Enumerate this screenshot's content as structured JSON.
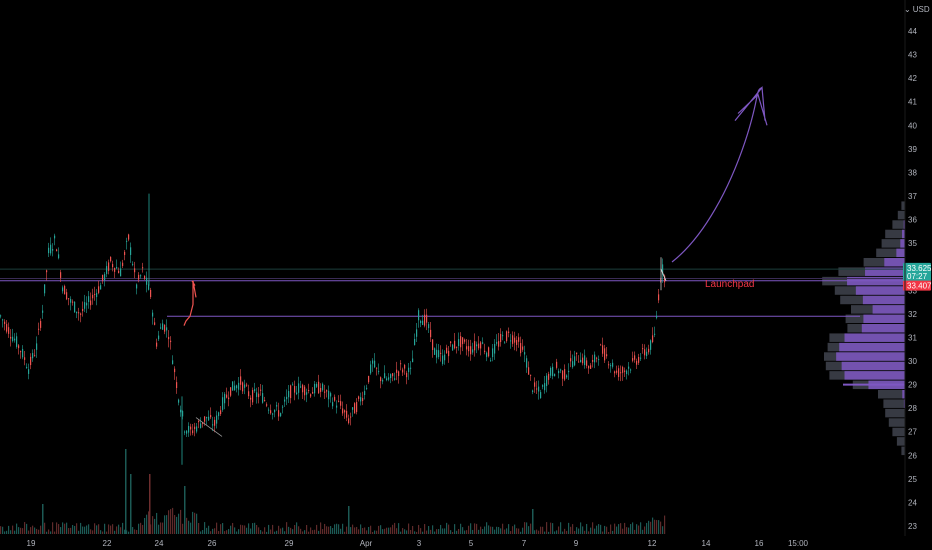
{
  "currency": {
    "label": "USD",
    "icon": "chevron-down-icon"
  },
  "y_axis": {
    "labels": [
      "44",
      "43",
      "42",
      "41",
      "40",
      "39",
      "38",
      "37",
      "36",
      "35",
      "34",
      "33",
      "32",
      "31",
      "30",
      "29",
      "28",
      "27",
      "26",
      "25",
      "24",
      "23"
    ]
  },
  "x_axis": {
    "labels": [
      "19",
      "22",
      "24",
      "26",
      "29",
      "Apr",
      "3",
      "5",
      "7",
      "9",
      "12",
      "14",
      "16",
      "15:00"
    ]
  },
  "price_tags": [
    {
      "value": "33.625",
      "color": "#26a69a"
    },
    {
      "value": "07:27",
      "color": "#26a69a"
    },
    {
      "value": "33.407",
      "color": "#f23645"
    }
  ],
  "annotations": {
    "launchpad": "Launchpad"
  },
  "colors": {
    "up": "#26a69a",
    "down": "#ef5350",
    "drawing": "#7e57c2",
    "volume_profile": "#7e57c2"
  },
  "chart_data": {
    "type": "candlestick",
    "ylim": [
      22.7,
      44.5
    ],
    "price_levels": [
      33.9,
      33.625,
      33.407,
      31.9
    ],
    "price_series": [
      [
        0,
        31.9
      ],
      [
        10,
        31.2
      ],
      [
        20,
        30.5
      ],
      [
        28,
        29.7
      ],
      [
        36,
        30.6
      ],
      [
        42,
        32.2
      ],
      [
        48,
        34.6
      ],
      [
        55,
        35.2
      ],
      [
        62,
        33.2
      ],
      [
        70,
        32.5
      ],
      [
        80,
        32.0
      ],
      [
        90,
        32.6
      ],
      [
        100,
        33.2
      ],
      [
        110,
        34.2
      ],
      [
        120,
        33.8
      ],
      [
        128,
        35.2
      ],
      [
        136,
        33.2
      ],
      [
        142,
        33.8
      ],
      [
        150,
        32.8
      ],
      [
        156,
        30.8
      ],
      [
        162,
        31.6
      ],
      [
        168,
        31.2
      ],
      [
        174,
        29.6
      ],
      [
        178,
        28.5
      ],
      [
        184,
        27.2
      ],
      [
        190,
        27.0
      ],
      [
        198,
        27.3
      ],
      [
        206,
        27.6
      ],
      [
        214,
        27.3
      ],
      [
        222,
        28.2
      ],
      [
        230,
        28.8
      ],
      [
        240,
        29.1
      ],
      [
        250,
        28.5
      ],
      [
        260,
        28.6
      ],
      [
        270,
        28.0
      ],
      [
        280,
        27.8
      ],
      [
        290,
        28.7
      ],
      [
        300,
        28.9
      ],
      [
        310,
        28.7
      ],
      [
        320,
        28.9
      ],
      [
        330,
        28.4
      ],
      [
        340,
        28.1
      ],
      [
        348,
        27.5
      ],
      [
        356,
        28.1
      ],
      [
        364,
        28.7
      ],
      [
        372,
        29.9
      ],
      [
        380,
        29.3
      ],
      [
        390,
        29.2
      ],
      [
        400,
        29.7
      ],
      [
        410,
        29.5
      ],
      [
        418,
        31.9
      ],
      [
        426,
        31.7
      ],
      [
        434,
        30.4
      ],
      [
        442,
        30.1
      ],
      [
        450,
        30.6
      ],
      [
        460,
        30.8
      ],
      [
        470,
        30.5
      ],
      [
        480,
        30.8
      ],
      [
        490,
        30.2
      ],
      [
        500,
        30.9
      ],
      [
        508,
        31.1
      ],
      [
        516,
        30.9
      ],
      [
        524,
        30.3
      ],
      [
        532,
        28.9
      ],
      [
        540,
        28.6
      ],
      [
        548,
        29.4
      ],
      [
        556,
        29.7
      ],
      [
        564,
        29.4
      ],
      [
        572,
        30.0
      ],
      [
        580,
        30.2
      ],
      [
        590,
        29.7
      ],
      [
        600,
        30.5
      ],
      [
        608,
        30.1
      ],
      [
        616,
        29.5
      ],
      [
        624,
        29.6
      ],
      [
        632,
        29.9
      ],
      [
        640,
        30.2
      ],
      [
        648,
        30.5
      ],
      [
        654,
        31.0
      ],
      [
        658,
        32.8
      ],
      [
        661,
        34.0
      ],
      [
        664,
        33.6
      ]
    ],
    "annotation_points": [
      [
        672,
        34.2
      ],
      [
        705,
        35.3
      ],
      [
        730,
        37.4
      ],
      [
        745,
        39.3
      ],
      [
        755,
        41.5
      ],
      [
        762,
        41.6
      ],
      [
        765,
        40.2
      ]
    ],
    "volume_profile": {
      "bins": [
        36.6,
        36.2,
        35.8,
        35.4,
        35.0,
        34.6,
        34.2,
        33.8,
        33.4,
        33.0,
        32.6,
        32.2,
        31.8,
        31.4,
        31.0,
        30.6,
        30.2,
        29.8,
        29.4,
        29.0,
        28.6,
        28.2,
        27.8,
        27.4,
        27.0,
        26.6,
        26.2
      ],
      "total": [
        4,
        8,
        14,
        22,
        26,
        32,
        46,
        74,
        92,
        78,
        72,
        60,
        66,
        64,
        84,
        86,
        90,
        88,
        84,
        58,
        30,
        24,
        22,
        18,
        14,
        9,
        4
      ],
      "up_share": [
        0.1,
        0.1,
        0.1,
        0.15,
        0.2,
        0.3,
        0.5,
        0.6,
        0.7,
        0.7,
        0.65,
        0.6,
        0.7,
        0.75,
        0.8,
        0.85,
        0.85,
        0.8,
        0.8,
        0.7,
        0.1,
        0.05,
        0.05,
        0.05,
        0.05,
        0.05,
        0.05
      ]
    }
  }
}
